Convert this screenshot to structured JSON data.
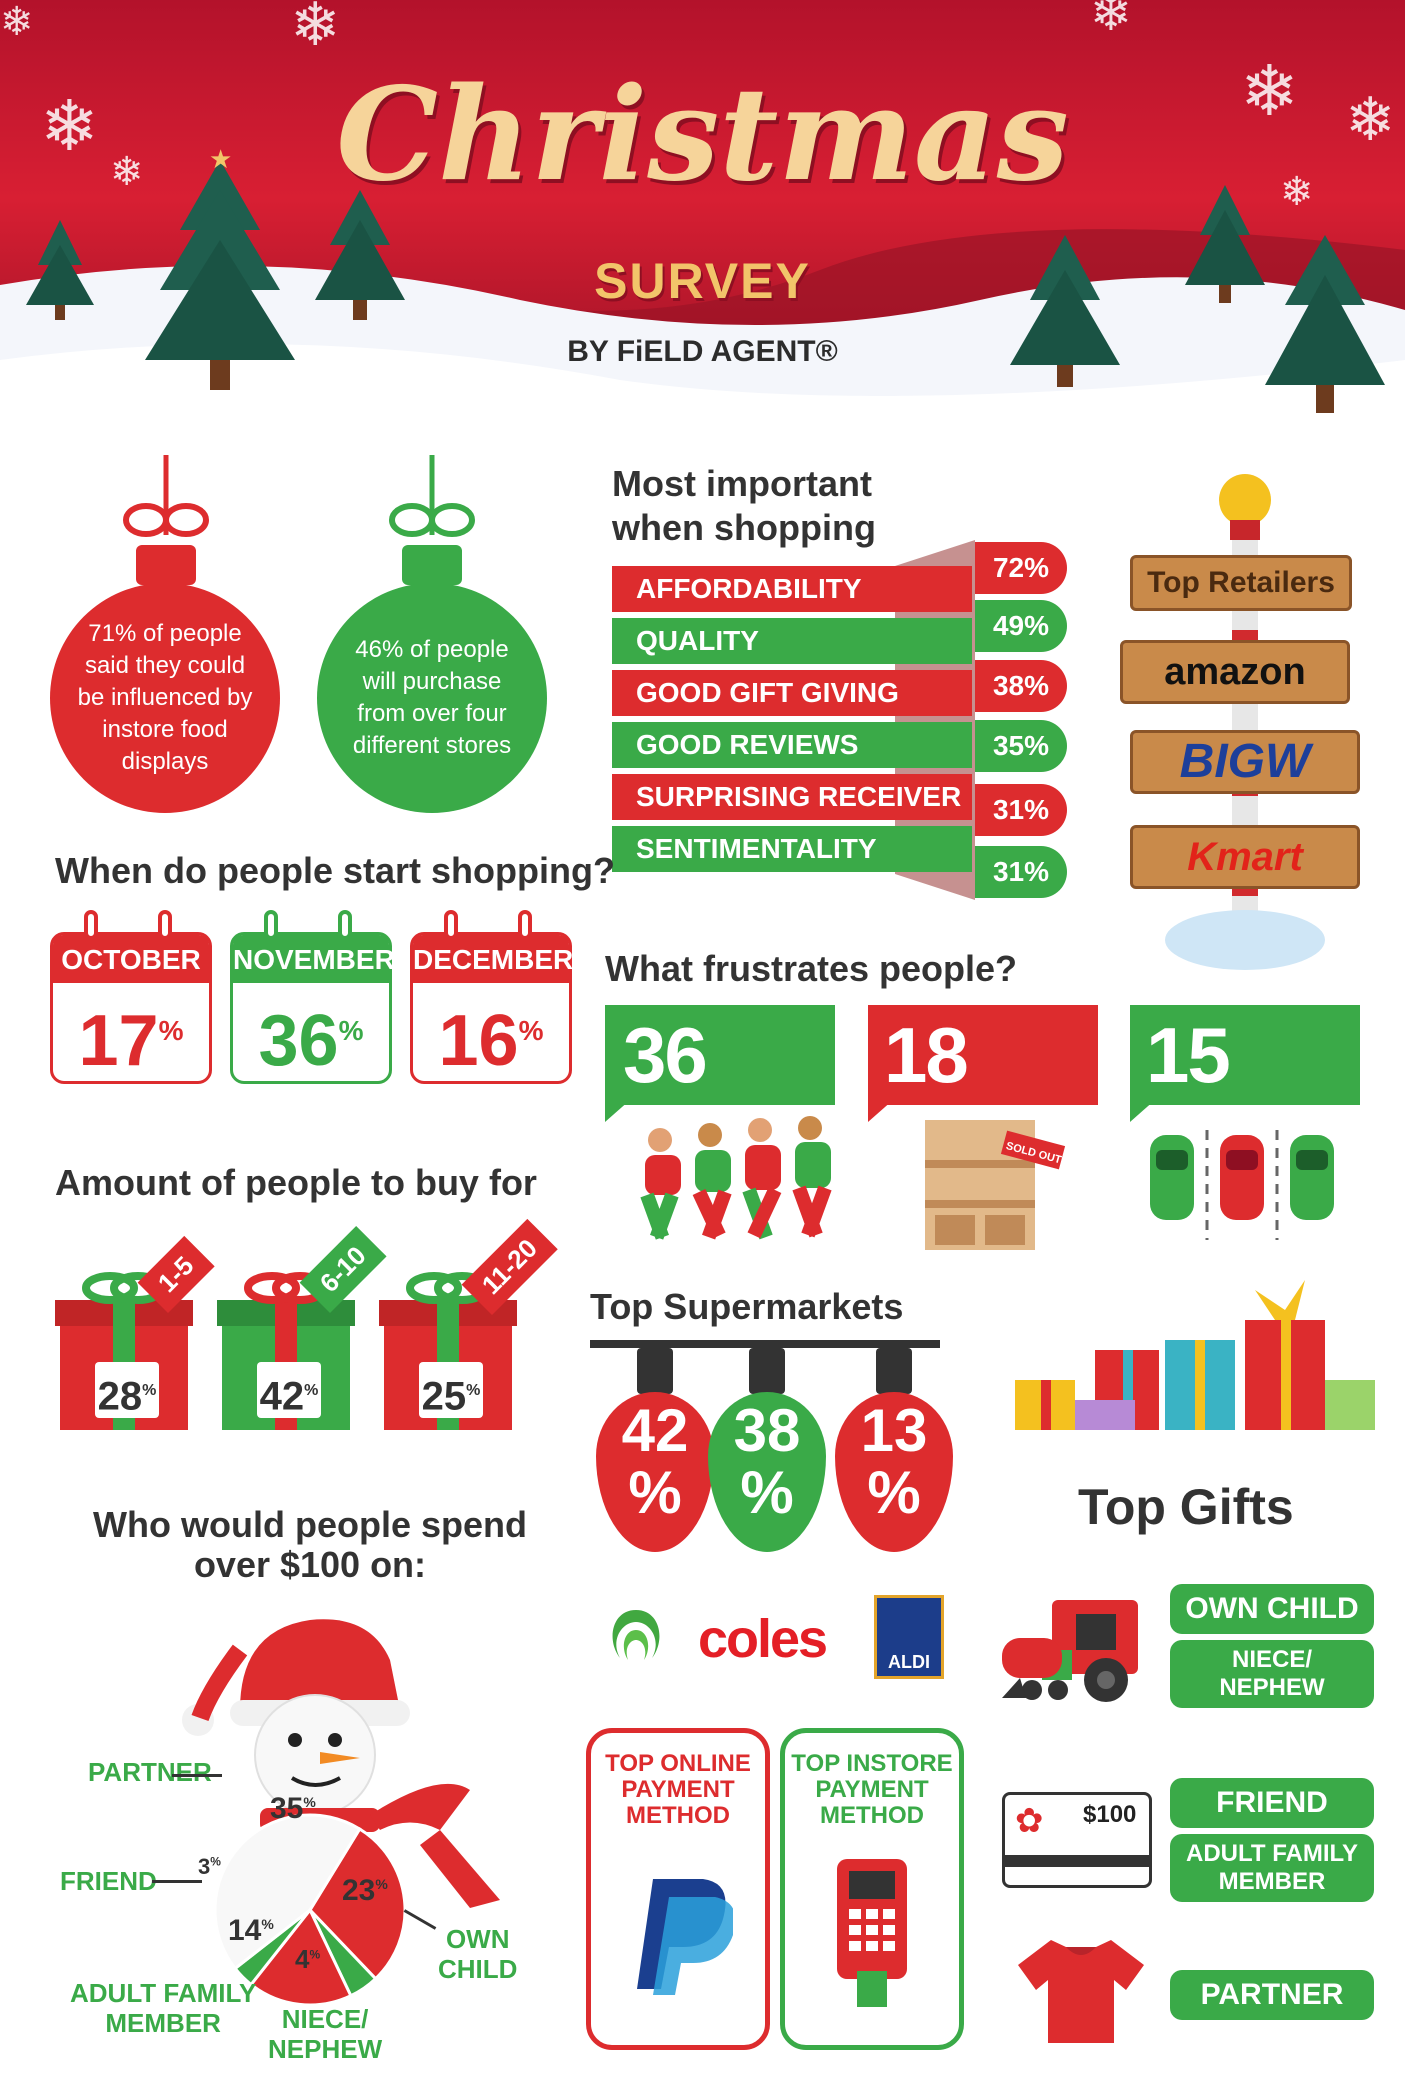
{
  "header": {
    "title": "Christmas",
    "subtitle": "SURVEY",
    "byline": "BY FiELD AGENT®"
  },
  "ornaments": [
    {
      "text": "71% of people said they could be influenced by instore food displays",
      "color": "#dd2c2e"
    },
    {
      "text": "46% of people will purchase from over four different stores",
      "color": "#3aaa48"
    }
  ],
  "important": {
    "title_line1": "Most important",
    "title_line2": "when shopping",
    "items": [
      {
        "label": "AFFORDABILITY",
        "value": "72%"
      },
      {
        "label": "QUALITY",
        "value": "49%"
      },
      {
        "label": "GOOD GIFT GIVING",
        "value": "38%"
      },
      {
        "label": "GOOD REVIEWS",
        "value": "35%"
      },
      {
        "label": "SURPRISING RECEIVER",
        "value": "31%"
      },
      {
        "label": "SENTIMENTALITY",
        "value": "31%"
      }
    ]
  },
  "retailers": {
    "title": "Top Retailers",
    "items": [
      "amazon",
      "BIGW",
      "Kmart"
    ]
  },
  "start_shopping": {
    "title": "When do people start shopping?",
    "months": [
      {
        "month": "OCTOBER",
        "value": "17",
        "unit": "%"
      },
      {
        "month": "NOVEMBER",
        "value": "36",
        "unit": "%"
      },
      {
        "month": "DECEMBER",
        "value": "16",
        "unit": "%"
      }
    ]
  },
  "frustrations": {
    "title": "What frustrates people?",
    "items": [
      {
        "value": "36",
        "unit": "%",
        "label": "CROWDS"
      },
      {
        "value": "18",
        "unit": "%",
        "label": "NO STOCK"
      },
      {
        "value": "15",
        "unit": "%",
        "label": "PARKING"
      }
    ],
    "sold_out": "SOLD OUT"
  },
  "buy_for": {
    "title": "Amount of people to buy for",
    "items": [
      {
        "range": "1-5",
        "value": "28",
        "unit": "%"
      },
      {
        "range": "6-10",
        "value": "42",
        "unit": "%"
      },
      {
        "range": "11-20",
        "value": "25",
        "unit": "%"
      }
    ]
  },
  "supermarkets": {
    "title": "Top Supermarkets",
    "items": [
      {
        "value": "42",
        "unit": "%",
        "brand": "Woolworths"
      },
      {
        "value": "38",
        "unit": "%",
        "brand": "coles"
      },
      {
        "value": "13",
        "unit": "%",
        "brand": "ALDI"
      }
    ]
  },
  "spend100": {
    "title_line1": "Who would people spend",
    "title_line2": "over $100 on:",
    "slices": [
      {
        "label": "PARTNER",
        "value": "35",
        "unit": "%"
      },
      {
        "label": "FRIEND",
        "value": "3",
        "unit": "%"
      },
      {
        "label_line1": "ADULT FAMILY",
        "label_line2": "MEMBER",
        "value": "14",
        "unit": "%"
      },
      {
        "label_line1": "NIECE/",
        "label_line2": "NEPHEW",
        "value": "4",
        "unit": "%"
      },
      {
        "label_line1": "OWN",
        "label_line2": "CHILD",
        "value": "23",
        "unit": "%"
      }
    ]
  },
  "payment": {
    "online": {
      "line1": "TOP ONLINE",
      "line2": "PAYMENT",
      "line3": "METHOD",
      "logo": "PayPal"
    },
    "instore": {
      "line1": "TOP INSTORE",
      "line2": "PAYMENT",
      "line3": "METHOD",
      "logo": "card-terminal"
    }
  },
  "top_gifts": {
    "title": "Top Gifts",
    "groups": [
      {
        "icon": "toy-train-icon",
        "pills": [
          {
            "text": "OWN CHILD"
          },
          {
            "line1": "NIECE/",
            "line2": "NEPHEW"
          }
        ]
      },
      {
        "icon": "gift-card-icon",
        "card_value": "$100",
        "pills": [
          {
            "text": "FRIEND"
          },
          {
            "line1": "ADULT FAMILY",
            "line2": "MEMBER"
          }
        ]
      },
      {
        "icon": "t-shirt-icon",
        "pills": [
          {
            "text": "PARTNER"
          }
        ]
      }
    ]
  },
  "colors": {
    "red": "#dd2c2e",
    "green": "#3aaa48",
    "dark_text": "#333333"
  }
}
